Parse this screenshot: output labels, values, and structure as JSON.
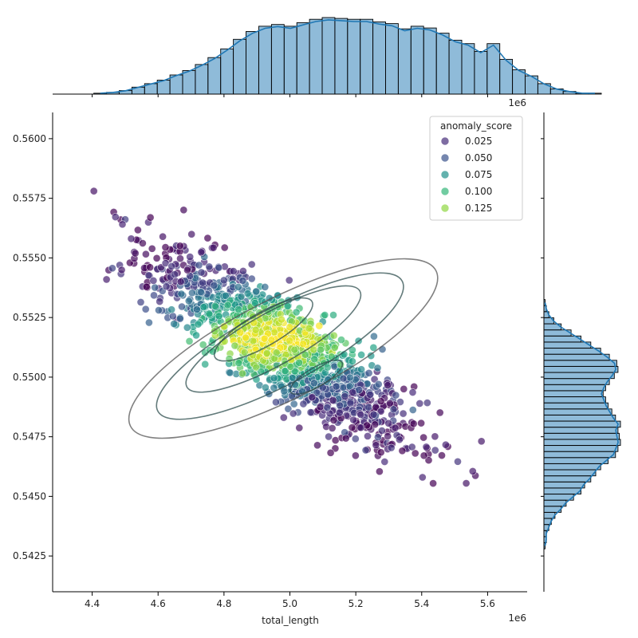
{
  "chart_data": {
    "type": "scatter",
    "title": "",
    "xlabel": "total_length",
    "ylabel": "",
    "x_offset_label": "1e6",
    "y_offset_label": "1e6",
    "xlim": [
      4.28,
      5.72
    ],
    "ylim": [
      0.541,
      0.5611
    ],
    "x_ticks": [
      4.4,
      4.6,
      4.8,
      5.0,
      5.2,
      5.4,
      5.6
    ],
    "x_tick_labels": [
      "4.4",
      "4.6",
      "4.8",
      "5.0",
      "5.2",
      "5.4",
      "5.6"
    ],
    "y_ticks": [
      0.5425,
      0.545,
      0.5475,
      0.55,
      0.5525,
      0.555,
      0.5575,
      0.56
    ],
    "y_tick_labels": [
      "0.5425",
      "0.5450",
      "0.5475",
      "0.5500",
      "0.5525",
      "0.5550",
      "0.5575",
      "0.5600"
    ],
    "grid": false,
    "legend": {
      "title": "anomaly_score",
      "placement": "top-right",
      "entries": [
        {
          "label": "0.025",
          "color": "#472d7b"
        },
        {
          "label": "0.050",
          "color": "#3b528b"
        },
        {
          "label": "0.075",
          "color": "#21918c"
        },
        {
          "label": "0.100",
          "color": "#35b779"
        },
        {
          "label": "0.125",
          "color": "#90d743"
        }
      ]
    },
    "colormap": "viridis",
    "hue_range": [
      0.0,
      0.15
    ],
    "point_alpha": 0.7,
    "trend": {
      "x_mean": 4.98,
      "y_mean": 0.5512,
      "slope_per_unit_x": -0.0088
    },
    "kde_contours": [
      {
        "cx": 4.98,
        "cy": 0.5512,
        "rx": 0.52,
        "ry": 0.0021,
        "angle_deg": -31
      },
      {
        "cx": 4.97,
        "cy": 0.5513,
        "rx": 0.42,
        "ry": 0.0016,
        "angle_deg": -32
      },
      {
        "cx": 4.95,
        "cy": 0.5516,
        "rx": 0.3,
        "ry": 0.0011,
        "angle_deg": -33
      },
      {
        "cx": 4.92,
        "cy": 0.552,
        "rx": 0.17,
        "ry": 0.0007,
        "angle_deg": -34
      },
      {
        "cx": 5.08,
        "cy": 0.55,
        "rx": 0.09,
        "ry": 0.0004,
        "angle_deg": -34
      }
    ],
    "marginal_x_hist": {
      "bin_start": 4.405,
      "bin_width": 0.0385,
      "counts": [
        1,
        2,
        4,
        8,
        12,
        16,
        22,
        27,
        34,
        42,
        52,
        63,
        72,
        78,
        80,
        78,
        82,
        86,
        88,
        87,
        86,
        86,
        83,
        81,
        75,
        78,
        76,
        70,
        62,
        58,
        49,
        58,
        40,
        28,
        21,
        12,
        6,
        3,
        1,
        1
      ]
    },
    "marginal_y_hist": {
      "bin_start": 0.5428,
      "bin_width": 0.000255,
      "counts": [
        1,
        2,
        2,
        4,
        6,
        9,
        14,
        18,
        24,
        30,
        33,
        38,
        42,
        46,
        52,
        58,
        60,
        62,
        61,
        60,
        62,
        58,
        55,
        52,
        50,
        48,
        50,
        53,
        57,
        60,
        59,
        53,
        46,
        38,
        30,
        22,
        14,
        8,
        4,
        2,
        1
      ]
    }
  }
}
